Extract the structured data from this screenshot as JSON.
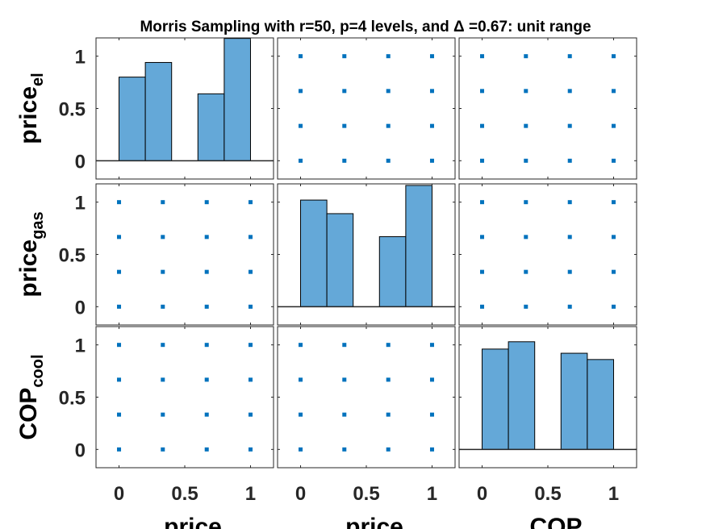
{
  "chart_data": {
    "type": "scatter-matrix",
    "title": "Morris Sampling with r=50, p=4 levels, and Δ =0.67: unit range",
    "variables": [
      {
        "label": "price",
        "subscript": "el"
      },
      {
        "label": "price",
        "subscript": "gas"
      },
      {
        "label": "COP",
        "subscript": "cool"
      }
    ],
    "x_axis_labels": [
      "price",
      "price",
      "COP"
    ],
    "levels": [
      0,
      0.333,
      0.667,
      1
    ],
    "tick_labels": [
      "0",
      "0.5",
      "1"
    ],
    "tick_values": [
      0,
      0.5,
      1
    ],
    "axis_range": [
      -0.175,
      1.175
    ],
    "histograms": [
      {
        "variable": "price_el",
        "bins": [
          [
            0,
            0.2
          ],
          [
            0.2,
            0.4
          ],
          [
            0.6,
            0.8
          ],
          [
            0.8,
            1.0
          ]
        ],
        "heights": [
          0.8,
          0.94,
          0.64,
          1.17
        ]
      },
      {
        "variable": "price_gas",
        "bins": [
          [
            0,
            0.2
          ],
          [
            0.2,
            0.4
          ],
          [
            0.6,
            0.8
          ],
          [
            0.8,
            1.0
          ]
        ],
        "heights": [
          1.02,
          0.89,
          0.67,
          1.16
        ]
      },
      {
        "variable": "COP_cool",
        "bins": [
          [
            0,
            0.2
          ],
          [
            0.2,
            0.4
          ],
          [
            0.6,
            0.8
          ],
          [
            0.8,
            1.0
          ]
        ],
        "heights": [
          0.96,
          1.03,
          0.92,
          0.86
        ]
      }
    ],
    "scatter_points": "all combinations of the 4 levels in each off-diagonal panel",
    "colors": {
      "bar_fill": "#64a8d8",
      "marker": "#0072bd",
      "axes": "#262626"
    }
  }
}
